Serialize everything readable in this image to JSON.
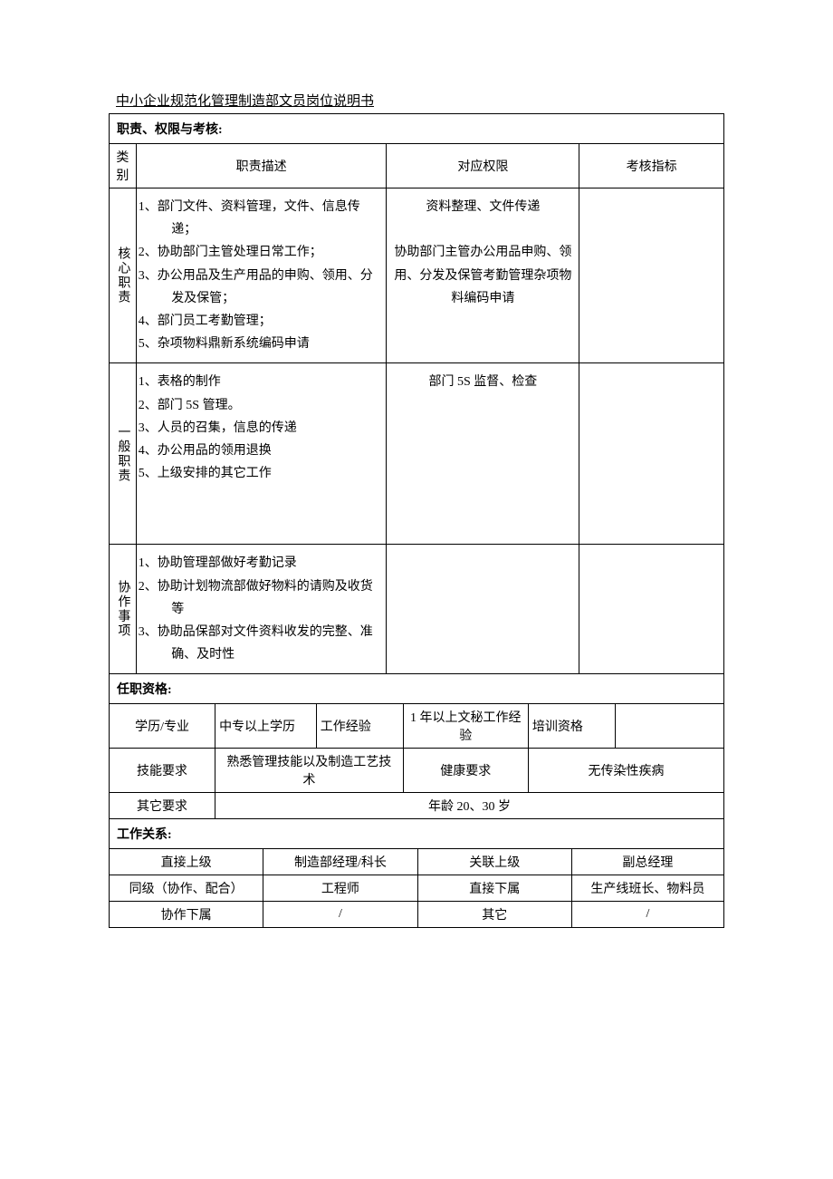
{
  "colors": {
    "text": "#000000",
    "background": "#ffffff",
    "border": "#000000"
  },
  "typography": {
    "body_fontsize_pt": 11,
    "title_fontsize_pt": 11,
    "line_height": 1.8
  },
  "page_title": "中小企业规范化管理制造部文员岗位说明书",
  "section1": {
    "header": "职责、权限与考核",
    "columns": {
      "category": "类别",
      "desc": "职责描述",
      "authority": "对应权限",
      "metric": "考核指标"
    },
    "rows": [
      {
        "category": "核心职责",
        "items": [
          "部门文件、资料管理，文件、信息传递；",
          "协助部门主管处理日常工作；",
          "办公用品及生产用品的申购、领用、分发及保管；",
          "部门员工考勤管理；",
          "杂项物料鼎新系统编码申请"
        ],
        "authority": "资料整理、文件传递\n\n协助部门主管办公用品申购、领用、分发及保管考勤管理杂项物料编码申请",
        "metric": ""
      },
      {
        "category": "一般职责",
        "items": [
          "表格的制作",
          "部门 5S 管理。",
          "人员的召集，信息的传递",
          "办公用品的领用退换",
          "上级安排的其它工作"
        ],
        "authority": "部门 5S 监督、检查",
        "metric": ""
      },
      {
        "category": "协作事项",
        "items": [
          "协助管理部做好考勤记录",
          "协助计划物流部做好物料的请购及收货等",
          "协助品保部对文件资料收发的完整、准确、及时性"
        ],
        "authority": "",
        "metric": ""
      }
    ]
  },
  "section2": {
    "header": "任职资格",
    "rows": [
      {
        "k1": "学历/专业",
        "v1": "中专以上学历",
        "k2": "工作经验",
        "v2": "1 年以上文秘工作经验",
        "k3": "培训资格",
        "v3": ""
      },
      {
        "k1": "技能要求",
        "v1": "熟悉管理技能以及制造工艺技术",
        "k2": "健康要求",
        "v2": "无传染性疾病"
      },
      {
        "k1": "其它要求",
        "v1": "年龄 20、30 岁"
      }
    ]
  },
  "section3": {
    "header": "工作关系",
    "rows": [
      {
        "k1": "直接上级",
        "v1": "制造部经理/科长",
        "k2": "关联上级",
        "v2": "副总经理"
      },
      {
        "k1": "同级（协作、配合）",
        "v1": "工程师",
        "k2": "直接下属",
        "v2": "生产线班长、物料员"
      },
      {
        "k1": "协作下属",
        "v1": "/",
        "k2": "其它",
        "v2": "/"
      }
    ]
  }
}
